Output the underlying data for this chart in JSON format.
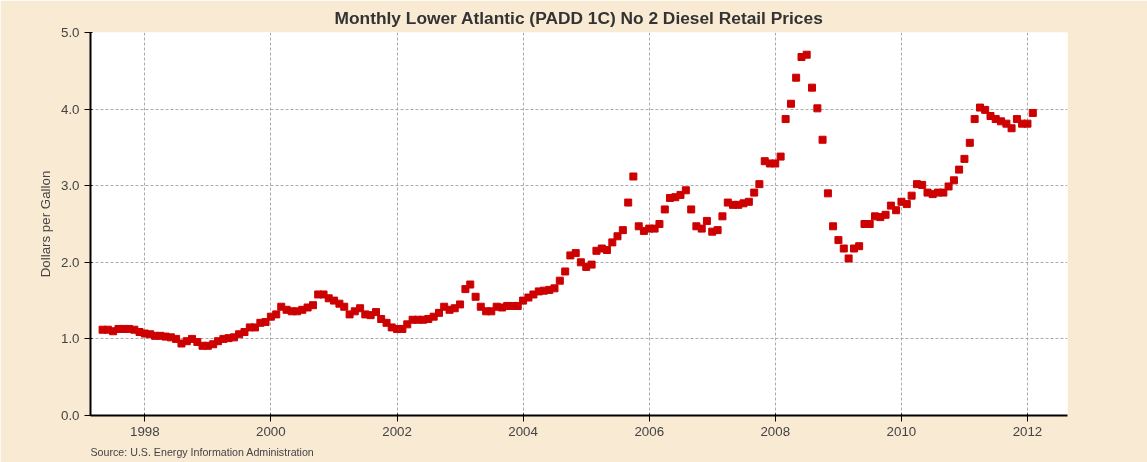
{
  "chart_data": {
    "type": "scatter",
    "title": "Monthly Lower Atlantic (PADD 1C) No 2 Diesel Retail Prices",
    "ylabel": "Dollars per Gallon",
    "annotations": [
      "Source: U.S. Energy Information Administration"
    ],
    "marker": "square",
    "grid": true,
    "xlim": [
      "1997-02-20",
      "2012-08-20"
    ],
    "xticks": [
      {
        "value": "1998-01-01",
        "label": "1998"
      },
      {
        "value": "2000-01-01",
        "label": "2000"
      },
      {
        "value": "2002-01-01",
        "label": "2002"
      },
      {
        "value": "2004-01-01",
        "label": "2004"
      },
      {
        "value": "2006-01-01",
        "label": "2006"
      },
      {
        "value": "2008-01-01",
        "label": "2008"
      },
      {
        "value": "2010-01-01",
        "label": "2010"
      },
      {
        "value": "2012-01-01",
        "label": "2012"
      }
    ],
    "ylim": [
      0,
      5
    ],
    "yticks": [
      {
        "value": 0,
        "label": "0.0"
      },
      {
        "value": 1,
        "label": "1.0"
      },
      {
        "value": 2,
        "label": "2.0"
      },
      {
        "value": 3,
        "label": "3.0"
      },
      {
        "value": 4,
        "label": "4.0"
      },
      {
        "value": 5,
        "label": "5.0"
      }
    ],
    "x": [
      "1997-05",
      "1997-06",
      "1997-07",
      "1997-08",
      "1997-09",
      "1997-10",
      "1997-11",
      "1997-12",
      "1998-01",
      "1998-02",
      "1998-03",
      "1998-04",
      "1998-05",
      "1998-06",
      "1998-07",
      "1998-08",
      "1998-09",
      "1998-10",
      "1998-11",
      "1998-12",
      "1999-01",
      "1999-02",
      "1999-03",
      "1999-04",
      "1999-05",
      "1999-06",
      "1999-07",
      "1999-08",
      "1999-09",
      "1999-10",
      "1999-11",
      "1999-12",
      "2000-01",
      "2000-02",
      "2000-03",
      "2000-04",
      "2000-05",
      "2000-06",
      "2000-07",
      "2000-08",
      "2000-09",
      "2000-10",
      "2000-11",
      "2000-12",
      "2001-01",
      "2001-02",
      "2001-03",
      "2001-04",
      "2001-05",
      "2001-06",
      "2001-07",
      "2001-08",
      "2001-09",
      "2001-10",
      "2001-11",
      "2001-12",
      "2002-01",
      "2002-02",
      "2002-03",
      "2002-04",
      "2002-05",
      "2002-06",
      "2002-07",
      "2002-08",
      "2002-09",
      "2002-10",
      "2002-11",
      "2002-12",
      "2003-01",
      "2003-02",
      "2003-03",
      "2003-04",
      "2003-05",
      "2003-06",
      "2003-07",
      "2003-08",
      "2003-09",
      "2003-10",
      "2003-11",
      "2003-12",
      "2004-01",
      "2004-02",
      "2004-03",
      "2004-04",
      "2004-05",
      "2004-06",
      "2004-07",
      "2004-08",
      "2004-09",
      "2004-10",
      "2004-11",
      "2004-12",
      "2005-01",
      "2005-02",
      "2005-03",
      "2005-04",
      "2005-05",
      "2005-06",
      "2005-07",
      "2005-08",
      "2005-09",
      "2005-10",
      "2005-11",
      "2005-12",
      "2006-01",
      "2006-02",
      "2006-03",
      "2006-04",
      "2006-05",
      "2006-06",
      "2006-07",
      "2006-08",
      "2006-09",
      "2006-10",
      "2006-11",
      "2006-12",
      "2007-01",
      "2007-02",
      "2007-03",
      "2007-04",
      "2007-05",
      "2007-06",
      "2007-07",
      "2007-08",
      "2007-09",
      "2007-10",
      "2007-11",
      "2007-12",
      "2008-01",
      "2008-02",
      "2008-03",
      "2008-04",
      "2008-05",
      "2008-06",
      "2008-07",
      "2008-08",
      "2008-09",
      "2008-10",
      "2008-11",
      "2008-12",
      "2009-01",
      "2009-02",
      "2009-03",
      "2009-04",
      "2009-05",
      "2009-06",
      "2009-07",
      "2009-08",
      "2009-09",
      "2009-10",
      "2009-11",
      "2009-12",
      "2010-01",
      "2010-02",
      "2010-03",
      "2010-04",
      "2010-05",
      "2010-06",
      "2010-07",
      "2010-08",
      "2010-09",
      "2010-10",
      "2010-11",
      "2010-12",
      "2011-01",
      "2011-02",
      "2011-03",
      "2011-04",
      "2011-05",
      "2011-06",
      "2011-07",
      "2011-08",
      "2011-09",
      "2011-10",
      "2011-11",
      "2011-12",
      "2012-01",
      "2012-02"
    ],
    "series": [
      {
        "color": "#cc0000",
        "values": [
          1.12,
          1.12,
          1.1,
          1.13,
          1.13,
          1.13,
          1.12,
          1.09,
          1.07,
          1.06,
          1.04,
          1.04,
          1.03,
          1.02,
          1.0,
          0.94,
          0.97,
          1.0,
          0.96,
          0.91,
          0.91,
          0.93,
          0.97,
          1.0,
          1.01,
          1.02,
          1.06,
          1.09,
          1.15,
          1.15,
          1.21,
          1.22,
          1.29,
          1.32,
          1.42,
          1.38,
          1.36,
          1.36,
          1.38,
          1.41,
          1.44,
          1.58,
          1.58,
          1.53,
          1.5,
          1.46,
          1.42,
          1.32,
          1.36,
          1.4,
          1.32,
          1.31,
          1.35,
          1.26,
          1.21,
          1.15,
          1.13,
          1.13,
          1.19,
          1.25,
          1.25,
          1.25,
          1.26,
          1.29,
          1.34,
          1.42,
          1.38,
          1.4,
          1.45,
          1.65,
          1.71,
          1.55,
          1.42,
          1.36,
          1.36,
          1.42,
          1.41,
          1.43,
          1.43,
          1.43,
          1.5,
          1.54,
          1.58,
          1.62,
          1.63,
          1.64,
          1.66,
          1.76,
          1.88,
          2.09,
          2.12,
          2.0,
          1.94,
          1.97,
          2.15,
          2.18,
          2.16,
          2.26,
          2.34,
          2.42,
          2.78,
          3.12,
          2.47,
          2.41,
          2.44,
          2.44,
          2.5,
          2.69,
          2.84,
          2.85,
          2.88,
          2.94,
          2.69,
          2.47,
          2.44,
          2.54,
          2.4,
          2.42,
          2.6,
          2.78,
          2.75,
          2.75,
          2.77,
          2.79,
          2.91,
          3.02,
          3.32,
          3.29,
          3.29,
          3.38,
          3.87,
          4.07,
          4.41,
          4.68,
          4.71,
          4.28,
          4.01,
          3.6,
          2.9,
          2.47,
          2.29,
          2.18,
          2.05,
          2.18,
          2.21,
          2.5,
          2.5,
          2.6,
          2.59,
          2.62,
          2.74,
          2.68,
          2.79,
          2.76,
          2.87,
          3.02,
          3.01,
          2.91,
          2.89,
          2.91,
          2.91,
          2.99,
          3.07,
          3.21,
          3.35,
          3.56,
          3.87,
          4.02,
          3.99,
          3.91,
          3.87,
          3.84,
          3.81,
          3.75,
          3.87,
          3.81,
          3.81,
          3.95
        ]
      }
    ]
  }
}
